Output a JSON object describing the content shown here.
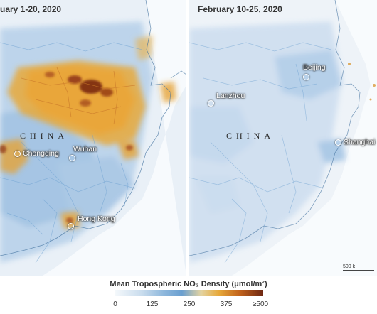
{
  "panels": [
    {
      "title": "uary 1-20, 2020",
      "country_label": "CHINA",
      "cities": [
        "Chongqing",
        "Wuhan",
        "Hong Kong"
      ]
    },
    {
      "title": "February 10-25, 2020",
      "country_label": "CHINA",
      "cities": [
        "Beijing",
        "Lanzhou",
        "Shanghai"
      ],
      "scale_label": "500 k"
    }
  ],
  "legend": {
    "title": "Mean Tropospheric NO₂ Density (μmol/m²)",
    "ticks": [
      "0",
      "125",
      "250",
      "375",
      "≥500"
    ]
  },
  "colors": {
    "land_light": "#eef3f8",
    "low": "#a9c8e6",
    "mid": "#e8a93a",
    "high": "#7a2a12",
    "coast": "#3f6f9c"
  }
}
